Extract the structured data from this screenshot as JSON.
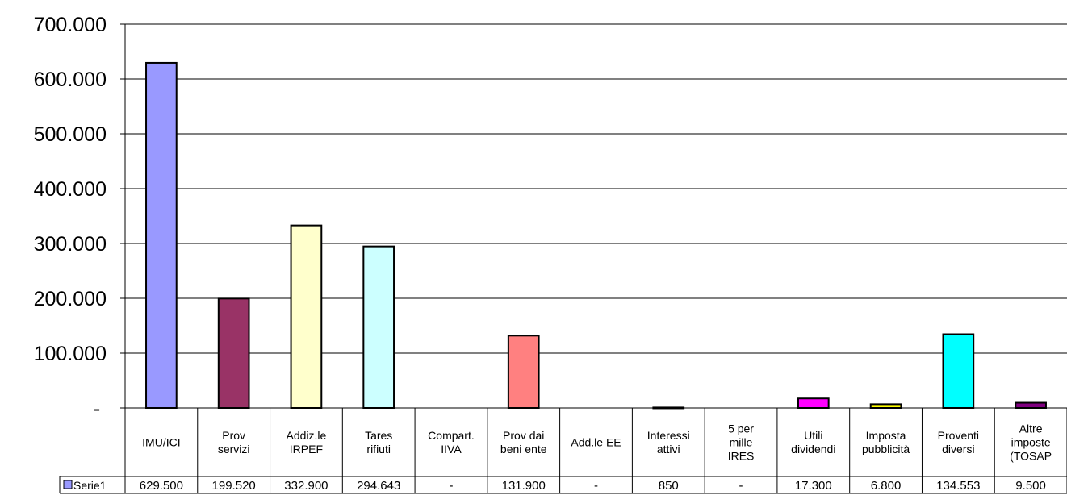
{
  "chart_data": {
    "type": "bar",
    "categories": [
      [
        "IMU/ICI"
      ],
      [
        "Prov",
        "servizi"
      ],
      [
        "Addiz.le",
        "IRPEF"
      ],
      [
        "Tares",
        "rifiuti"
      ],
      [
        "Compart.",
        "IIVA"
      ],
      [
        "Prov dai",
        "beni ente"
      ],
      [
        "Add.le EE"
      ],
      [
        "Interessi",
        "attivi"
      ],
      [
        "5 per",
        "mille",
        "IRES"
      ],
      [
        "Utili",
        "dividendi"
      ],
      [
        "Imposta",
        "pubblicità"
      ],
      [
        "Proventi",
        "diversi"
      ],
      [
        "Altre",
        "imposte",
        "(TOSAP"
      ]
    ],
    "series": [
      {
        "name": "Serie1",
        "values": [
          629500,
          199520,
          332900,
          294643,
          0,
          131900,
          0,
          850,
          0,
          17300,
          6800,
          134553,
          9500
        ],
        "labels": [
          "629.500",
          "199.520",
          "332.900",
          "294.643",
          "-",
          "131.900",
          "-",
          "850",
          "-",
          "17.300",
          "6.800",
          "134.553",
          "9.500"
        ]
      }
    ],
    "bar_colors": [
      "#9999ff",
      "#993366",
      "#ffffcc",
      "#ccffff",
      "#660066",
      "#ff8080",
      "#0066cc",
      "#ccccff",
      "#000080",
      "#ff00ff",
      "#ffff00",
      "#00ffff",
      "#800080"
    ],
    "legend_color": "#9999ff",
    "yticks": [
      "-",
      "100.000",
      "200.000",
      "300.000",
      "400.000",
      "500.000",
      "600.000",
      "700.000"
    ],
    "ylim": [
      0,
      700000
    ],
    "grid": true,
    "legend_position": "data-table"
  }
}
